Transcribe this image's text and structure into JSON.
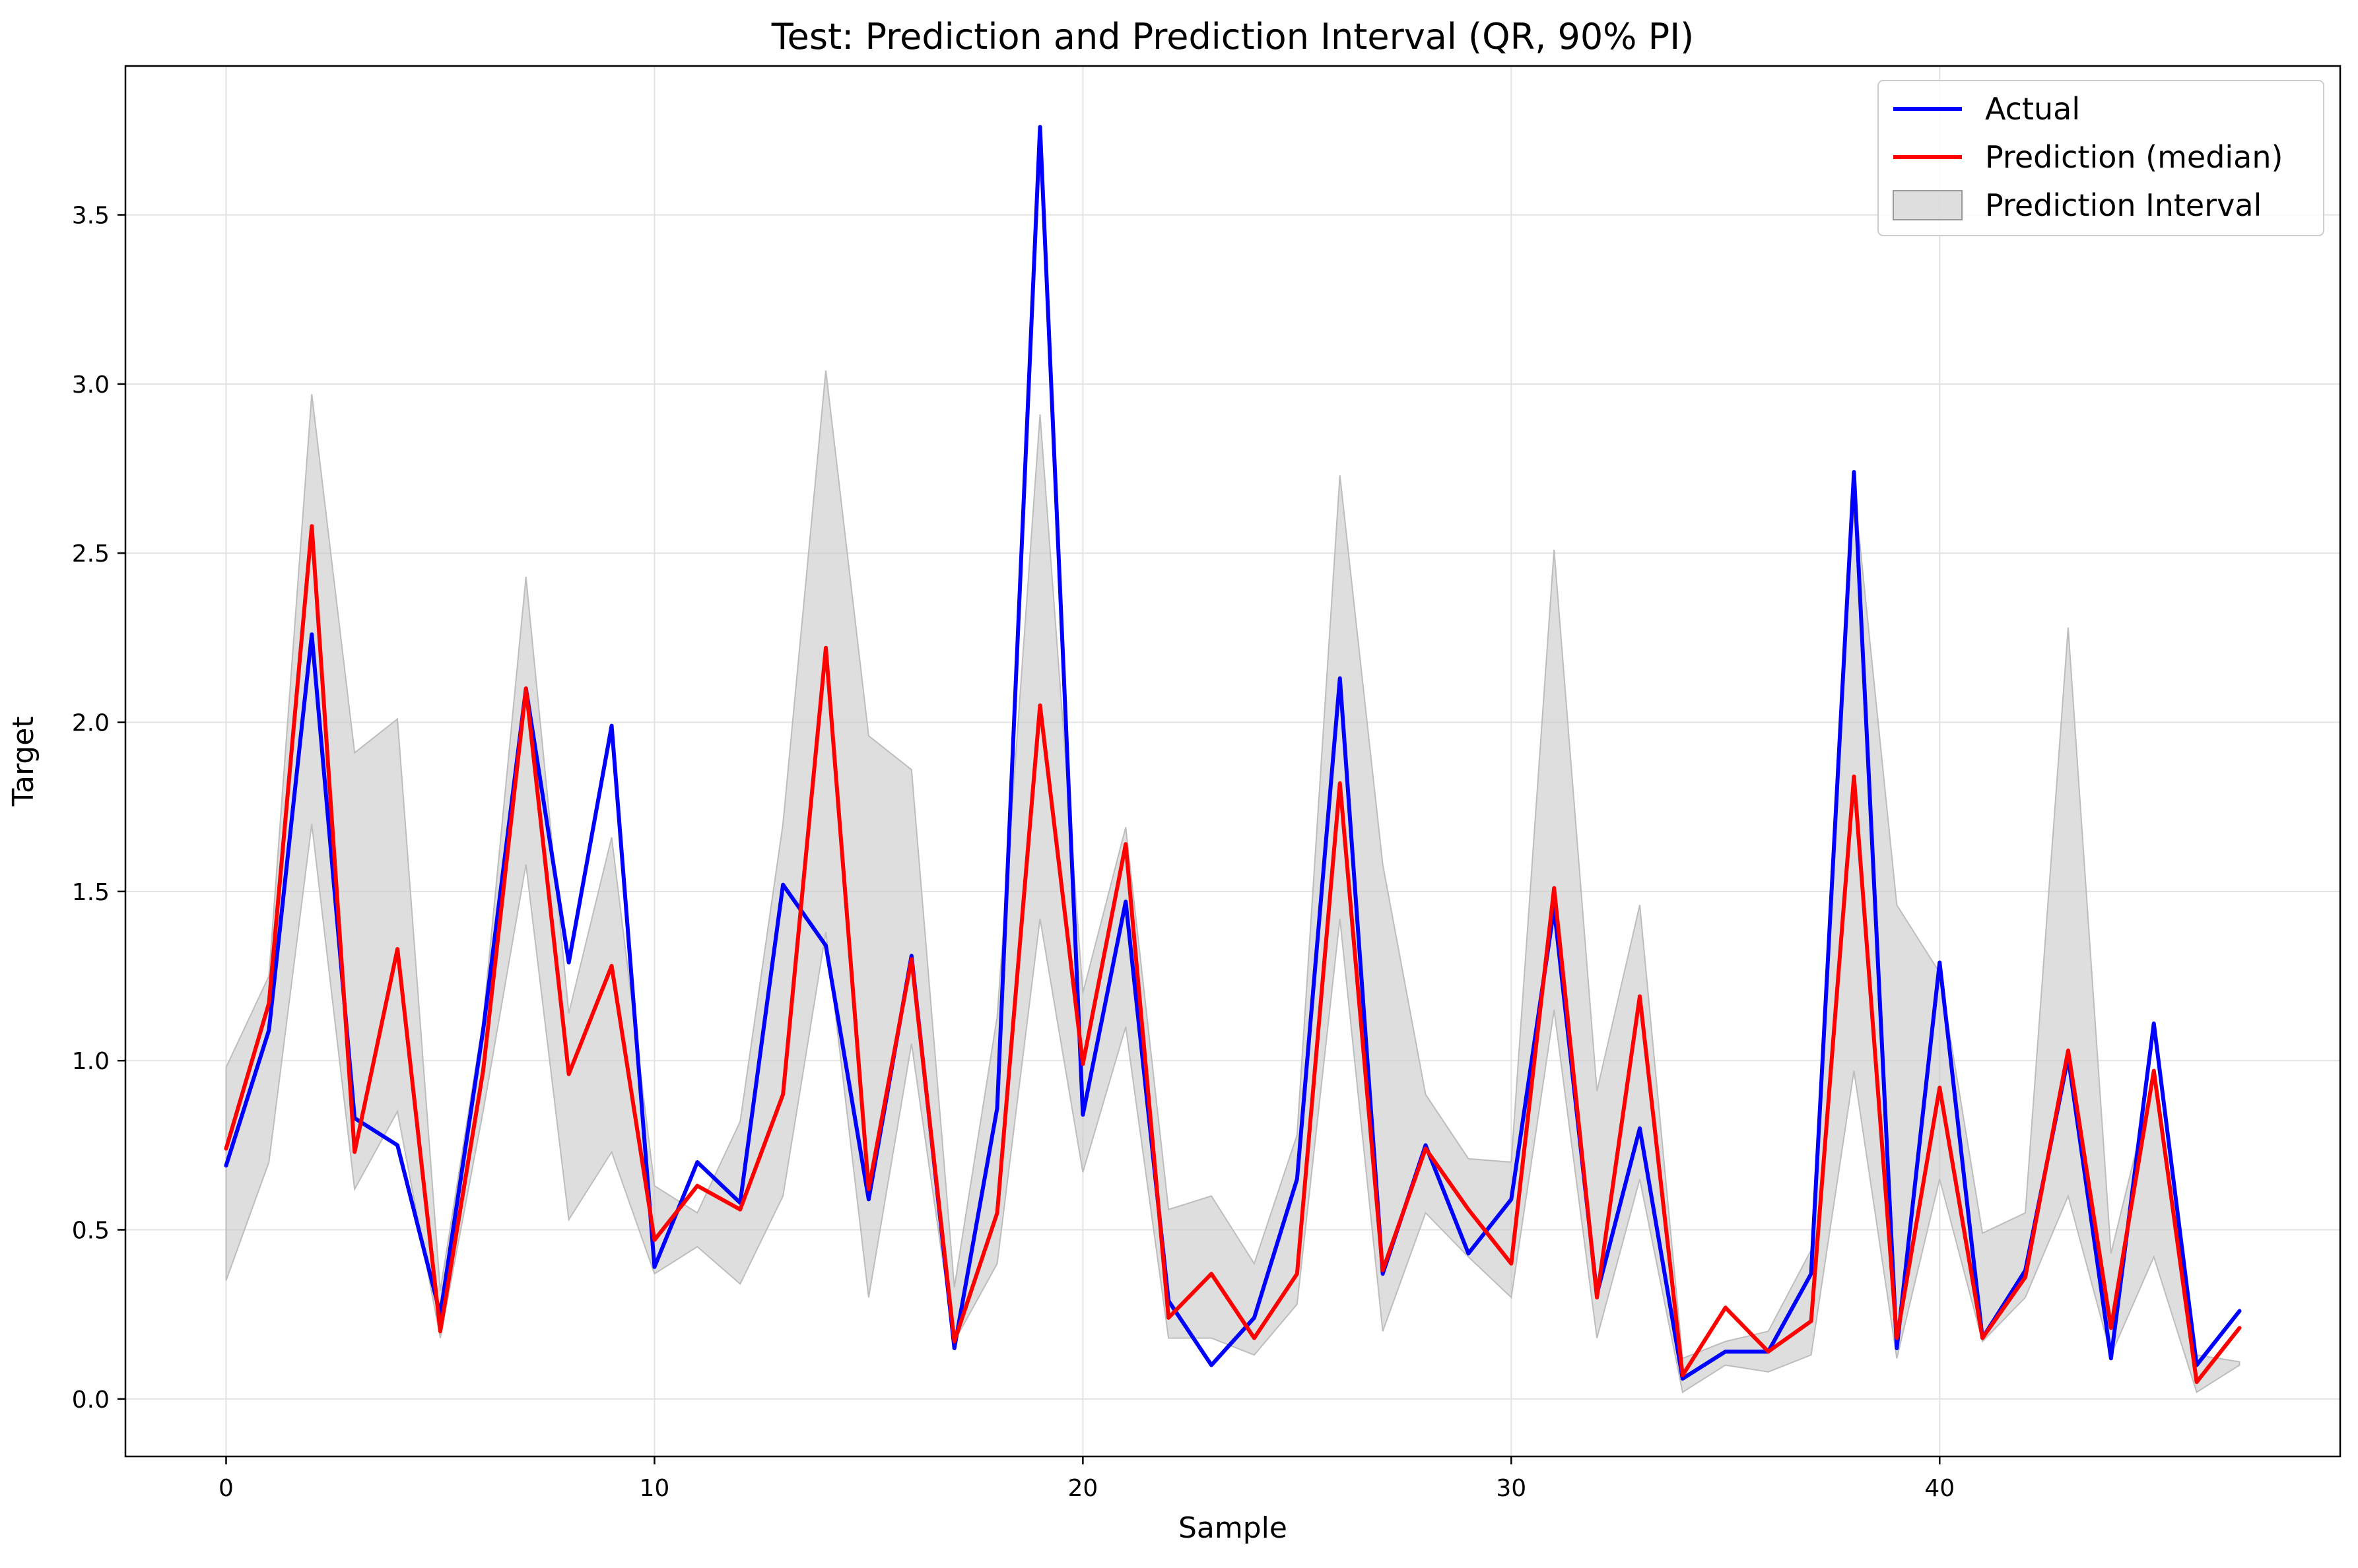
{
  "chart_data": {
    "type": "line",
    "title": "Test: Prediction and Prediction Interval (QR, 90% PI)",
    "xlabel": "Sample",
    "ylabel": "Target",
    "xlim": [
      -2.35,
      49.35
    ],
    "ylim": [
      -0.17,
      3.94
    ],
    "xticks": [
      0,
      10,
      20,
      30,
      40
    ],
    "xtick_labels": [
      "0",
      "10",
      "20",
      "30",
      "40"
    ],
    "yticks": [
      0.0,
      0.5,
      1.0,
      1.5,
      2.0,
      2.5,
      3.0,
      3.5
    ],
    "ytick_labels": [
      "0.0",
      "0.5",
      "1.0",
      "1.5",
      "2.0",
      "2.5",
      "3.0",
      "3.5"
    ],
    "grid": true,
    "legend_position": "top-right",
    "x": [
      0,
      1,
      2,
      3,
      4,
      5,
      6,
      7,
      8,
      9,
      10,
      11,
      12,
      13,
      14,
      15,
      16,
      17,
      18,
      19,
      20,
      21,
      22,
      23,
      24,
      25,
      26,
      27,
      28,
      29,
      30,
      31,
      32,
      33,
      34,
      35,
      36,
      37,
      38,
      39,
      40,
      41,
      42,
      43,
      44,
      45,
      46,
      47
    ],
    "series": [
      {
        "name": "Actual",
        "color": "#0000ff",
        "values": [
          0.69,
          1.09,
          2.26,
          0.83,
          0.75,
          0.25,
          1.09,
          2.1,
          1.29,
          1.99,
          0.39,
          0.7,
          0.58,
          1.52,
          1.34,
          0.59,
          1.31,
          0.15,
          0.86,
          3.76,
          0.84,
          1.47,
          0.29,
          0.1,
          0.24,
          0.65,
          2.13,
          0.37,
          0.75,
          0.43,
          0.59,
          1.45,
          0.31,
          0.8,
          0.06,
          0.14,
          0.14,
          0.37,
          2.74,
          0.15,
          1.29,
          0.18,
          0.38,
          1.01,
          0.12,
          1.11,
          0.1,
          0.26
        ]
      },
      {
        "name": "Prediction (median)",
        "color": "#ff0000",
        "values": [
          0.74,
          1.17,
          2.58,
          0.73,
          1.33,
          0.2,
          0.97,
          2.1,
          0.96,
          1.28,
          0.47,
          0.63,
          0.56,
          0.9,
          2.22,
          0.62,
          1.3,
          0.17,
          0.55,
          2.05,
          0.99,
          1.64,
          0.24,
          0.37,
          0.18,
          0.37,
          1.82,
          0.38,
          0.74,
          0.56,
          0.4,
          1.51,
          0.3,
          1.19,
          0.07,
          0.27,
          0.14,
          0.23,
          1.84,
          0.18,
          0.92,
          0.18,
          0.36,
          1.03,
          0.21,
          0.97,
          0.05,
          0.21
        ]
      }
    ],
    "interval": {
      "name": "Prediction Interval",
      "color": "#c8c8c8",
      "lower": [
        0.35,
        0.7,
        1.7,
        0.62,
        0.85,
        0.18,
        0.85,
        1.58,
        0.53,
        0.73,
        0.37,
        0.45,
        0.34,
        0.6,
        1.38,
        0.3,
        1.05,
        0.17,
        0.4,
        1.42,
        0.67,
        1.1,
        0.18,
        0.18,
        0.13,
        0.28,
        1.42,
        0.2,
        0.55,
        0.42,
        0.3,
        1.15,
        0.18,
        0.65,
        0.02,
        0.1,
        0.08,
        0.13,
        0.97,
        0.12,
        0.65,
        0.17,
        0.3,
        0.6,
        0.13,
        0.42,
        0.02,
        0.1
      ],
      "upper": [
        0.98,
        1.25,
        2.97,
        1.91,
        2.01,
        0.32,
        1.12,
        2.43,
        1.14,
        1.66,
        0.63,
        0.55,
        0.82,
        1.7,
        3.04,
        1.96,
        1.86,
        0.33,
        1.13,
        2.91,
        1.2,
        1.69,
        0.56,
        0.6,
        0.4,
        0.78,
        2.73,
        1.58,
        0.9,
        0.71,
        0.7,
        2.51,
        0.91,
        1.46,
        0.12,
        0.17,
        0.2,
        0.44,
        2.7,
        1.46,
        1.26,
        0.49,
        0.55,
        2.28,
        0.43,
        0.95,
        0.13,
        0.11
      ]
    }
  },
  "legend": {
    "items": [
      {
        "label": "Actual",
        "color": "#0000ff"
      },
      {
        "label": "Prediction (median)",
        "color": "#ff0000"
      },
      {
        "label": "Prediction Interval",
        "color": "#c8c8c8"
      }
    ]
  }
}
